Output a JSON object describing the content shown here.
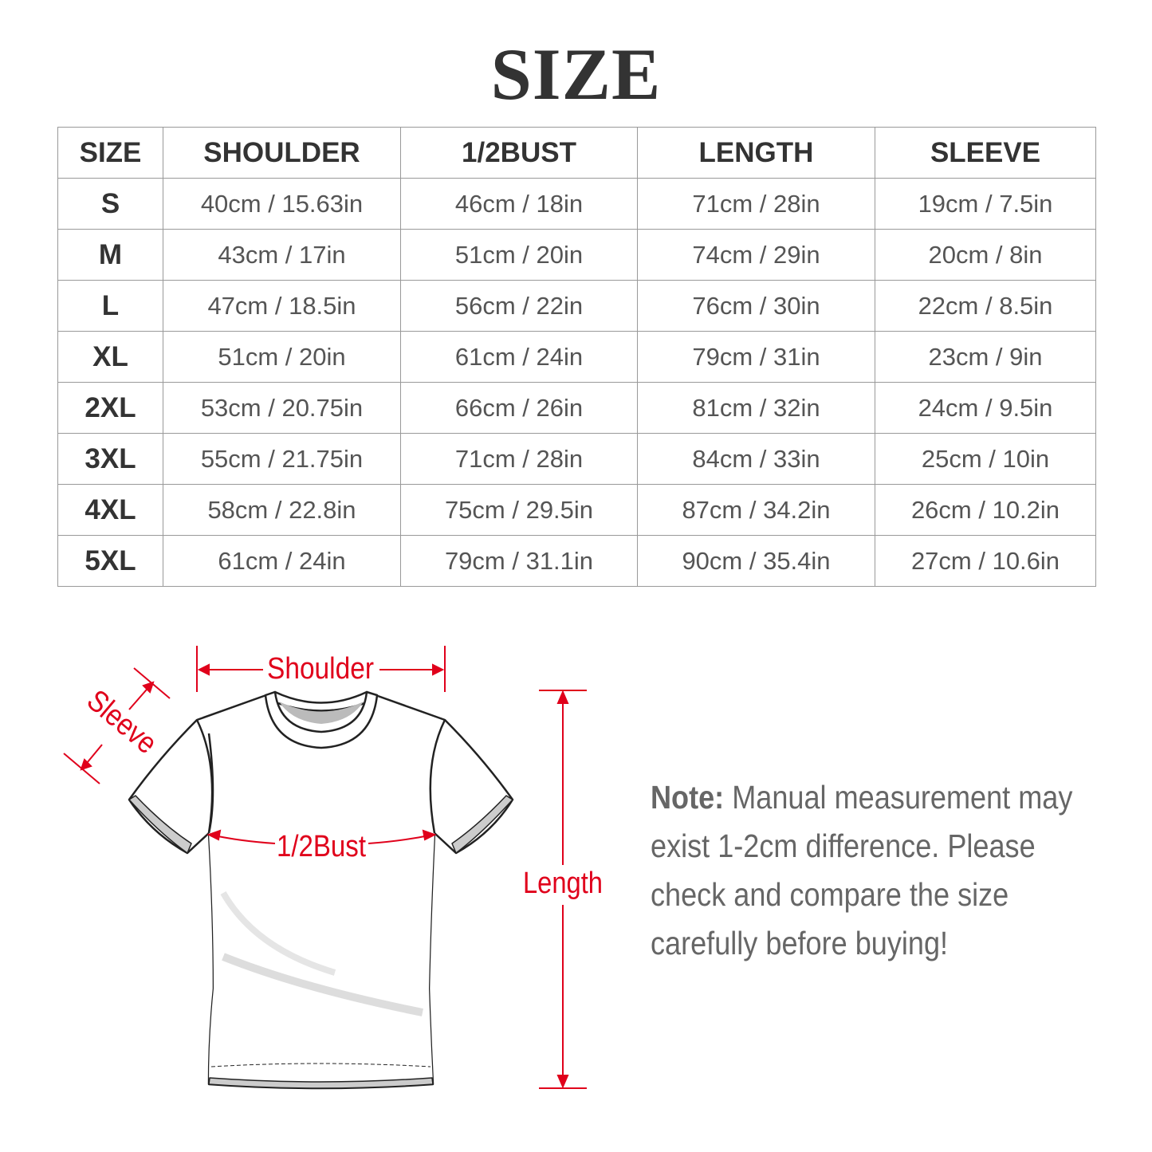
{
  "title": "SIZE",
  "table": {
    "headers": [
      "SIZE",
      "SHOULDER",
      "1/2BUST",
      "LENGTH",
      "SLEEVE"
    ],
    "rows": [
      [
        "S",
        "40cm / 15.63in",
        "46cm / 18in",
        "71cm / 28in",
        "19cm / 7.5in"
      ],
      [
        "M",
        "43cm / 17in",
        "51cm / 20in",
        "74cm / 29in",
        "20cm / 8in"
      ],
      [
        "L",
        "47cm / 18.5in",
        "56cm / 22in",
        "76cm / 30in",
        "22cm / 8.5in"
      ],
      [
        "XL",
        "51cm / 20in",
        "61cm / 24in",
        "79cm / 31in",
        "23cm / 9in"
      ],
      [
        "2XL",
        "53cm / 20.75in",
        "66cm / 26in",
        "81cm / 32in",
        "24cm / 9.5in"
      ],
      [
        "3XL",
        "55cm / 21.75in",
        "71cm / 28in",
        "84cm / 33in",
        "25cm / 10in"
      ],
      [
        "4XL",
        "58cm / 22.8in",
        "75cm / 29.5in",
        "87cm / 34.2in",
        "26cm / 10.2in"
      ],
      [
        "5XL",
        "61cm / 24in",
        "79cm / 31.1in",
        "90cm / 35.4in",
        "27cm / 10.6in"
      ]
    ]
  },
  "diagram": {
    "shoulder": "Shoulder",
    "sleeve": "Sleeve",
    "bust": "1/2Bust",
    "length": "Length",
    "accent": "#e0001b"
  },
  "note": {
    "label": "Note:",
    "lines": [
      "Manual measurement may",
      "exist 1-2cm difference. Please",
      "check and compare the size",
      "carefully before buying!"
    ]
  }
}
